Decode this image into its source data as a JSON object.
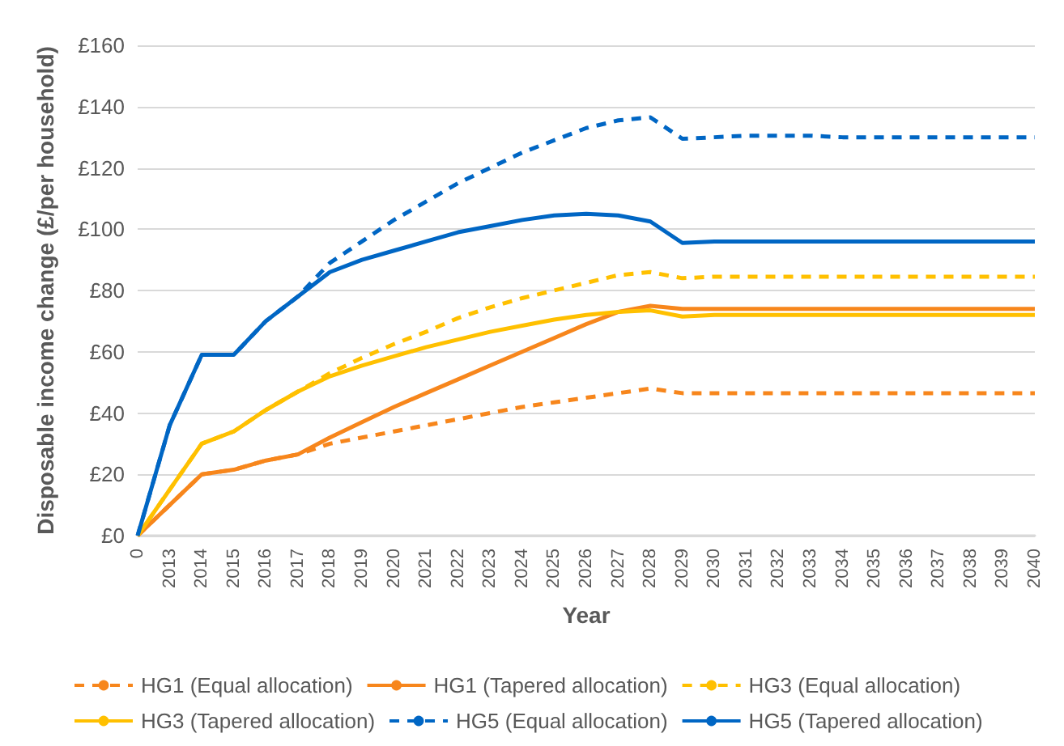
{
  "chart_data": {
    "type": "line",
    "xlabel": "Year",
    "ylabel": "Disposable income change (£/per household)",
    "categories": [
      "0",
      "2013",
      "2014",
      "2015",
      "2016",
      "2017",
      "2018",
      "2019",
      "2020",
      "2021",
      "2022",
      "2023",
      "2024",
      "2025",
      "2026",
      "2027",
      "2028",
      "2029",
      "2030",
      "2031",
      "2032",
      "2033",
      "2034",
      "2035",
      "2036",
      "2037",
      "2038",
      "2039",
      "2040"
    ],
    "ylim": [
      0,
      160
    ],
    "yticks": [
      {
        "value": 0,
        "label": "£0"
      },
      {
        "value": 20,
        "label": "£20"
      },
      {
        "value": 40,
        "label": "£40"
      },
      {
        "value": 60,
        "label": "£60"
      },
      {
        "value": 80,
        "label": "£80"
      },
      {
        "value": 100,
        "label": "£100"
      },
      {
        "value": 120,
        "label": "£120"
      },
      {
        "value": 140,
        "label": "£140"
      },
      {
        "value": 160,
        "label": "£160"
      }
    ],
    "grid": "y",
    "legend": "bottom",
    "marker": "none",
    "series": [
      {
        "name": "HG1 (Equal allocation)",
        "color": "#f7861c",
        "line_style": "dashed",
        "values": [
          0,
          10,
          20,
          21.5,
          24.5,
          26.5,
          30,
          32,
          34,
          36,
          38,
          40,
          42,
          43.5,
          45,
          46.5,
          48,
          46.5,
          46.5,
          46.5,
          46.5,
          46.5,
          46.5,
          46.5,
          46.5,
          46.5,
          46.5,
          46.5,
          46.5
        ]
      },
      {
        "name": "HG1 (Tapered allocation)",
        "color": "#f7861c",
        "line_style": "solid",
        "values": [
          0,
          10,
          20,
          21.5,
          24.5,
          26.5,
          32,
          37,
          42,
          46.5,
          51,
          55.5,
          60,
          64.5,
          69,
          73,
          75,
          74,
          74,
          74,
          74,
          74,
          74,
          74,
          74,
          74,
          74,
          74,
          74
        ]
      },
      {
        "name": "HG3 (Equal allocation)",
        "color": "#ffc000",
        "line_style": "dashed",
        "values": [
          0,
          15,
          30,
          34,
          41,
          47,
          53,
          58,
          62.5,
          66.5,
          71,
          74.5,
          77.5,
          80,
          82.5,
          85,
          86,
          84,
          84.5,
          84.5,
          84.5,
          84.5,
          84.5,
          84.5,
          84.5,
          84.5,
          84.5,
          84.5,
          84.5
        ]
      },
      {
        "name": "HG3 (Tapered allocation)",
        "color": "#ffc000",
        "line_style": "solid",
        "values": [
          0,
          15,
          30,
          34,
          41,
          47,
          52,
          55.5,
          58.5,
          61.5,
          64,
          66.5,
          68.5,
          70.5,
          72,
          73,
          73.5,
          71.5,
          72,
          72,
          72,
          72,
          72,
          72,
          72,
          72,
          72,
          72,
          72
        ]
      },
      {
        "name": "HG5 (Equal allocation)",
        "color": "#0066c4",
        "line_style": "dashed",
        "values": [
          0,
          36,
          59,
          59,
          70,
          78,
          89,
          96,
          103,
          109,
          115,
          120,
          125,
          129,
          133,
          135.5,
          136.5,
          129.5,
          130,
          130.5,
          130.5,
          130.5,
          130,
          130,
          130,
          130,
          130,
          130,
          130
        ]
      },
      {
        "name": "HG5 (Tapered allocation)",
        "color": "#0066c4",
        "line_style": "solid",
        "values": [
          0,
          36,
          59,
          59,
          70,
          78,
          86,
          90,
          93,
          96,
          99,
          101,
          103,
          104.5,
          105,
          104.5,
          102.5,
          95.5,
          96,
          96,
          96,
          96,
          96,
          96,
          96,
          96,
          96,
          96,
          96
        ]
      }
    ]
  }
}
